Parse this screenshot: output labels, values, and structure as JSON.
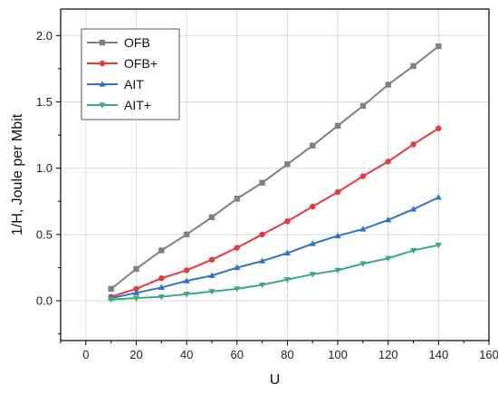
{
  "chart_data": {
    "type": "line",
    "title": "",
    "xlabel": "U",
    "ylabel": "1/H, Joule per Mbit",
    "xlim": [
      -10,
      160
    ],
    "ylim": [
      -0.3,
      2.2
    ],
    "xticks": [
      0,
      20,
      40,
      60,
      80,
      100,
      120,
      140,
      160
    ],
    "yticks": [
      0.0,
      0.5,
      1.0,
      1.5,
      2.0
    ],
    "ytick_labels": [
      "0.0",
      "0.5",
      "1.0",
      "1.5",
      "2.0"
    ],
    "grid": true,
    "legend_position": "top-left",
    "x": [
      10,
      20,
      30,
      40,
      50,
      60,
      70,
      80,
      90,
      100,
      110,
      120,
      130,
      140
    ],
    "series": [
      {
        "name": "OFB",
        "color": "#808080",
        "marker": "square",
        "values": [
          0.09,
          0.24,
          0.38,
          0.5,
          0.63,
          0.77,
          0.89,
          1.03,
          1.17,
          1.32,
          1.47,
          1.63,
          1.77,
          1.92
        ]
      },
      {
        "name": "OFB+",
        "color": "#e8383d",
        "marker": "circle",
        "values": [
          0.03,
          0.09,
          0.17,
          0.23,
          0.31,
          0.4,
          0.5,
          0.6,
          0.71,
          0.82,
          0.94,
          1.05,
          1.18,
          1.3
        ]
      },
      {
        "name": "AIT",
        "color": "#2e75c7",
        "marker": "triangle-up",
        "values": [
          0.02,
          0.06,
          0.1,
          0.15,
          0.19,
          0.25,
          0.3,
          0.36,
          0.43,
          0.49,
          0.54,
          0.61,
          0.69,
          0.78
        ]
      },
      {
        "name": "AIT+",
        "color": "#3aab76",
        "marker": "triangle-down",
        "values": [
          0.01,
          0.02,
          0.03,
          0.05,
          0.07,
          0.09,
          0.12,
          0.16,
          0.2,
          0.23,
          0.28,
          0.32,
          0.38,
          0.42
        ]
      }
    ]
  }
}
